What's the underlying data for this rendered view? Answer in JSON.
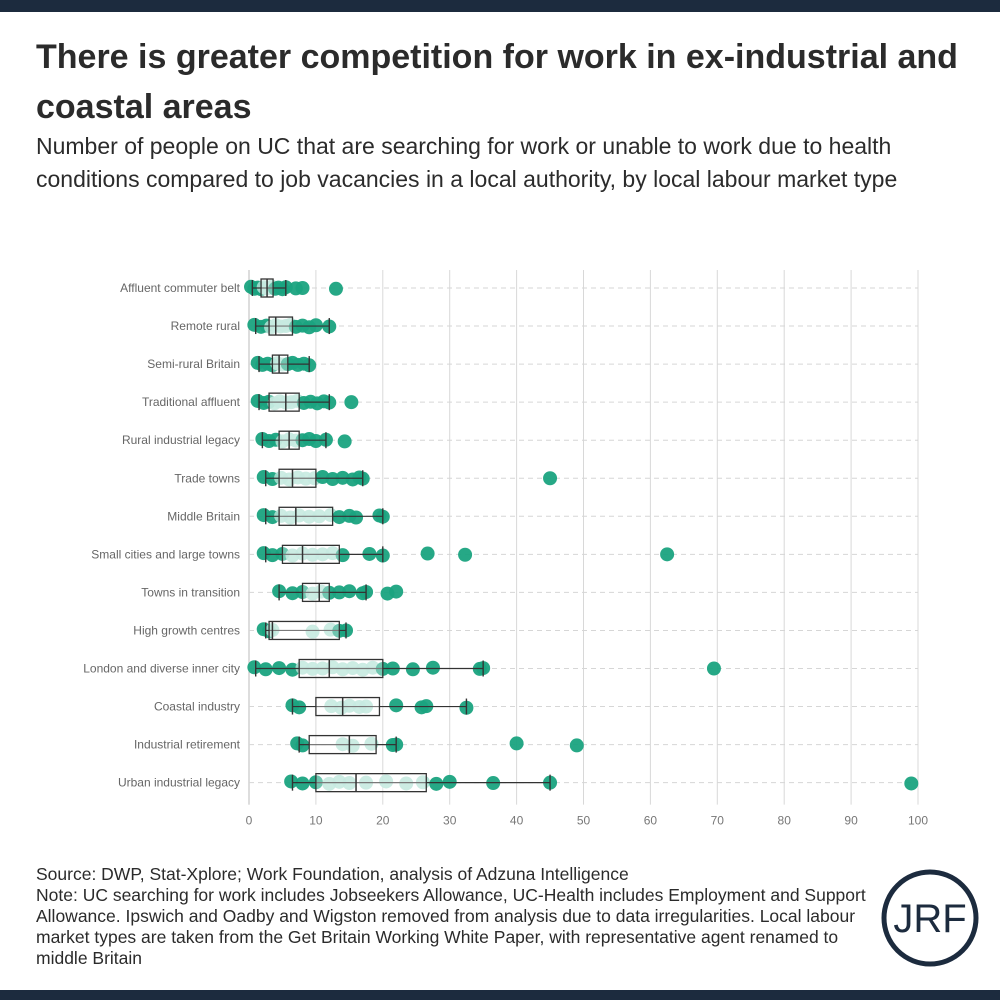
{
  "title": "There is greater competition for work in ex-industrial and coastal areas",
  "subtitle": "Number of people on UC that are searching for work or unable to work due to health conditions compared to job vacancies in a local authority, by local labour market type",
  "footer": {
    "source": "Source: DWP, Stat-Xplore; Work Foundation, analysis of Adzuna Intelligence",
    "note": "Note: UC searching for work includes Jobseekers Allowance, UC-Health includes Employment and Support Allowance. Ipswich and Oadby and Wigston removed from analysis due to data irregularities. Local labour market types are taken from the Get Britain Working White Paper, with representative agent renamed to middle Britain"
  },
  "logo": {
    "text": "JRF"
  },
  "colors": {
    "point": "#1aa37f",
    "point_light": "#a8dfd0",
    "box": "#333333",
    "grid": "#d8d8d8",
    "dark": "#1c2b3e"
  },
  "chart_data": {
    "type": "boxplot",
    "xlim": [
      0,
      100
    ],
    "xticks": [
      0,
      10,
      20,
      30,
      40,
      50,
      60,
      70,
      80,
      90,
      100
    ],
    "xlabel": "",
    "ylabel": "",
    "grid": "vertical",
    "categories": [
      {
        "name": "Affluent commuter belt",
        "whisker": [
          0.5,
          5.5
        ],
        "q1": 1.8,
        "median": 2.7,
        "q3": 3.6,
        "points": [
          0.3,
          0.8,
          1.3,
          1.8,
          2.2,
          2.6,
          3.0,
          3.4,
          3.9,
          4.4,
          5.0,
          5.5,
          7.0,
          8.0,
          13.0
        ]
      },
      {
        "name": "Remote rural",
        "whisker": [
          1.0,
          12.0
        ],
        "q1": 3.0,
        "median": 4.0,
        "q3": 6.5,
        "points": [
          0.8,
          1.8,
          2.6,
          3.3,
          4.0,
          4.7,
          5.5,
          6.2,
          7.0,
          8.0,
          9.0,
          10.0,
          12.0
        ]
      },
      {
        "name": "Semi-rural Britain",
        "whisker": [
          1.5,
          9.0
        ],
        "q1": 3.5,
        "median": 4.5,
        "q3": 5.8,
        "points": [
          1.3,
          2.0,
          2.8,
          3.5,
          4.2,
          5.0,
          5.8,
          6.5,
          7.3,
          8.2,
          9.0
        ]
      },
      {
        "name": "Traditional affluent",
        "whisker": [
          1.5,
          12.0
        ],
        "q1": 3.0,
        "median": 5.5,
        "q3": 7.5,
        "points": [
          1.3,
          2.2,
          3.0,
          3.8,
          4.6,
          5.5,
          6.3,
          7.2,
          8.2,
          9.2,
          10.2,
          11.2,
          12.0,
          15.3
        ]
      },
      {
        "name": "Rural industrial legacy",
        "whisker": [
          2.0,
          11.5
        ],
        "q1": 4.5,
        "median": 6.0,
        "q3": 7.5,
        "points": [
          2.0,
          3.0,
          4.0,
          5.0,
          6.0,
          7.0,
          8.0,
          9.0,
          10.0,
          11.5,
          14.3
        ]
      },
      {
        "name": "Trade towns",
        "whisker": [
          2.5,
          17.0
        ],
        "q1": 4.5,
        "median": 6.5,
        "q3": 10.0,
        "points": [
          2.2,
          3.5,
          4.8,
          6.0,
          7.3,
          8.5,
          9.8,
          11.0,
          12.5,
          14.0,
          15.5,
          16.5,
          17.0,
          45.0
        ]
      },
      {
        "name": "Middle Britain",
        "whisker": [
          2.5,
          20.0
        ],
        "q1": 4.5,
        "median": 7.0,
        "q3": 12.5,
        "points": [
          2.2,
          3.5,
          4.8,
          6.2,
          7.5,
          9.0,
          10.5,
          12.2,
          13.5,
          15.0,
          16.0,
          19.5,
          20.0
        ]
      },
      {
        "name": "Small cities and large towns",
        "whisker": [
          2.5,
          20.0
        ],
        "q1": 5.0,
        "median": 8.0,
        "q3": 13.5,
        "points": [
          2.2,
          3.5,
          5.0,
          6.5,
          8.0,
          9.5,
          11.0,
          12.5,
          14.0,
          18.0,
          20.0,
          26.7,
          32.3,
          62.5
        ]
      },
      {
        "name": "Towns in transition",
        "whisker": [
          4.5,
          17.5
        ],
        "q1": 8.0,
        "median": 10.5,
        "q3": 12.0,
        "points": [
          4.5,
          6.5,
          8.0,
          9.5,
          10.8,
          12.0,
          13.5,
          15.0,
          17.0,
          17.5,
          20.7,
          22.0
        ]
      },
      {
        "name": "High growth centres",
        "whisker": [
          2.5,
          14.5
        ],
        "q1": 3.0,
        "median": 3.5,
        "q3": 13.5,
        "points": [
          2.2,
          3.0,
          3.5,
          9.5,
          12.2,
          13.5,
          14.5
        ]
      },
      {
        "name": "London and diverse inner city",
        "whisker": [
          1.0,
          35.0
        ],
        "q1": 7.5,
        "median": 12.0,
        "q3": 20.0,
        "points": [
          0.8,
          2.5,
          4.5,
          6.5,
          8.0,
          9.5,
          11.0,
          12.5,
          14.0,
          15.5,
          17.0,
          18.5,
          20.0,
          21.5,
          24.5,
          27.5,
          34.5,
          35.0,
          69.5
        ]
      },
      {
        "name": "Coastal industry",
        "whisker": [
          6.5,
          32.5
        ],
        "q1": 10.0,
        "median": 14.0,
        "q3": 19.5,
        "points": [
          6.5,
          7.5,
          12.3,
          13.8,
          15.0,
          16.5,
          17.5,
          22.0,
          25.8,
          26.5,
          32.5
        ]
      },
      {
        "name": "Industrial retirement",
        "whisker": [
          7.5,
          22.0
        ],
        "q1": 9.0,
        "median": 15.0,
        "q3": 19.0,
        "points": [
          7.2,
          8.0,
          14.0,
          15.5,
          18.3,
          21.5,
          22.0,
          40.0,
          49.0
        ]
      },
      {
        "name": "Urban industrial legacy",
        "whisker": [
          6.5,
          45.0
        ],
        "q1": 10.0,
        "median": 16.0,
        "q3": 26.5,
        "points": [
          6.3,
          8.0,
          10.0,
          12.0,
          13.5,
          15.0,
          17.5,
          20.5,
          23.5,
          26.0,
          28.0,
          30.0,
          36.5,
          45.0,
          99.0
        ]
      }
    ]
  }
}
